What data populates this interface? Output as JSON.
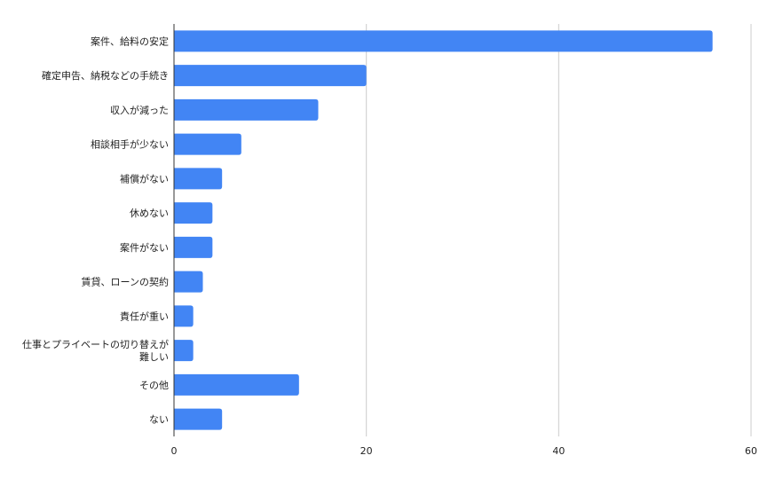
{
  "chart_data": {
    "type": "bar",
    "orientation": "horizontal",
    "categories": [
      "案件、給料の安定",
      "確定申告、納税などの手続き",
      "収入が減った",
      "相談相手が少ない",
      "補償がない",
      "休めない",
      "案件がない",
      "賃貸、ローンの契約",
      "責任が重い",
      "仕事とプライベートの切り替えが難しい",
      "その他",
      "ない"
    ],
    "category_label_lines": [
      [
        "案件、給料の安定"
      ],
      [
        "確定申告、納税などの手続き"
      ],
      [
        "収入が減った"
      ],
      [
        "相談相手が少ない"
      ],
      [
        "補償がない"
      ],
      [
        "休めない"
      ],
      [
        "案件がない"
      ],
      [
        "賃貸、ローンの契約"
      ],
      [
        "責任が重い"
      ],
      [
        "仕事とプライベートの切り替えが",
        "難しい"
      ],
      [
        "その他"
      ],
      [
        "ない"
      ]
    ],
    "values": [
      56,
      20,
      15,
      7,
      5,
      4,
      4,
      3,
      2,
      2,
      13,
      5
    ],
    "xlim": [
      0,
      60
    ],
    "xticks": [
      0,
      20,
      40,
      60
    ],
    "grid": "vertical",
    "legend": "none",
    "bar_color": "#4285f4",
    "grid_color": "#cccccc",
    "axis_color": "#333333",
    "title": "",
    "xlabel": "",
    "ylabel": ""
  }
}
